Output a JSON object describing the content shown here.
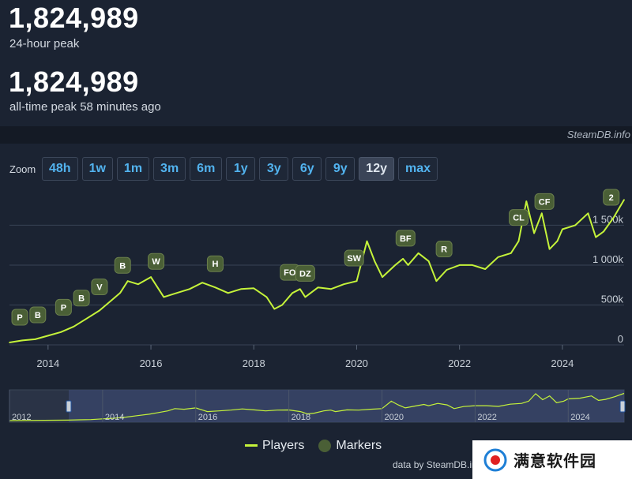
{
  "stats": {
    "peak_24h_value": "1,824,989",
    "peak_24h_label": "24-hour peak",
    "alltime_value": "1,824,989",
    "alltime_label": "all-time peak 58 minutes ago"
  },
  "watermark": "SteamDB.info",
  "zoom": {
    "label": "Zoom",
    "buttons": [
      {
        "label": "48h",
        "active": false
      },
      {
        "label": "1w",
        "active": false
      },
      {
        "label": "1m",
        "active": false
      },
      {
        "label": "3m",
        "active": false
      },
      {
        "label": "6m",
        "active": false
      },
      {
        "label": "1y",
        "active": false
      },
      {
        "label": "3y",
        "active": false
      },
      {
        "label": "6y",
        "active": false
      },
      {
        "label": "9y",
        "active": false
      },
      {
        "label": "12y",
        "active": true
      },
      {
        "label": "max",
        "active": false
      }
    ]
  },
  "colors": {
    "players_line": "#c5f33a",
    "marker_fill": "#4a5f36",
    "background": "#1b2332"
  },
  "legend": {
    "players": "Players",
    "markers": "Markers"
  },
  "credit": "data by SteamDB.info",
  "logo_text": "满意软件园",
  "chart_data": {
    "type": "line",
    "ylim": [
      0,
      1900000
    ],
    "y_ticks": [
      0,
      500000,
      1000000,
      1500000
    ],
    "y_tick_labels": [
      "0",
      "500k",
      "1 000k",
      "1 500k"
    ],
    "x_ticks": [
      2014,
      2016,
      2018,
      2020,
      2022,
      2024
    ],
    "xlim": [
      2013.25,
      2025.2
    ],
    "grid": true,
    "series": [
      {
        "name": "Players",
        "x": [
          2013.25,
          2013.5,
          2013.75,
          2014.0,
          2014.25,
          2014.5,
          2014.75,
          2015.0,
          2015.2,
          2015.4,
          2015.55,
          2015.75,
          2016.0,
          2016.25,
          2016.5,
          2016.75,
          2017.0,
          2017.25,
          2017.5,
          2017.75,
          2018.0,
          2018.25,
          2018.4,
          2018.55,
          2018.75,
          2018.9,
          2019.0,
          2019.25,
          2019.5,
          2019.75,
          2020.0,
          2020.2,
          2020.35,
          2020.5,
          2020.75,
          2020.9,
          2021.0,
          2021.2,
          2021.4,
          2021.55,
          2021.75,
          2022.0,
          2022.25,
          2022.5,
          2022.75,
          2023.0,
          2023.15,
          2023.3,
          2023.45,
          2023.6,
          2023.75,
          2023.9,
          2024.0,
          2024.25,
          2024.5,
          2024.65,
          2024.8,
          2025.0,
          2025.2
        ],
        "values": [
          30000,
          55000,
          70000,
          115000,
          160000,
          230000,
          330000,
          430000,
          540000,
          650000,
          800000,
          760000,
          850000,
          600000,
          650000,
          700000,
          780000,
          720000,
          650000,
          700000,
          710000,
          600000,
          450000,
          500000,
          650000,
          700000,
          600000,
          720000,
          700000,
          760000,
          800000,
          1300000,
          1050000,
          850000,
          1000000,
          1080000,
          1000000,
          1150000,
          1050000,
          800000,
          940000,
          1000000,
          1000000,
          950000,
          1100000,
          1150000,
          1300000,
          1800000,
          1400000,
          1650000,
          1200000,
          1300000,
          1450000,
          1500000,
          1650000,
          1350000,
          1420000,
          1600000,
          1820000
        ]
      }
    ],
    "markers": [
      {
        "label": "P",
        "x": 2013.45
      },
      {
        "label": "B",
        "x": 2013.8
      },
      {
        "label": "P",
        "x": 2014.3
      },
      {
        "label": "B",
        "x": 2014.65
      },
      {
        "label": "V",
        "x": 2015.0
      },
      {
        "label": "B",
        "x": 2015.45
      },
      {
        "label": "W",
        "x": 2016.1
      },
      {
        "label": "H",
        "x": 2017.25
      },
      {
        "label": "FO",
        "x": 2018.7
      },
      {
        "label": "DZ",
        "x": 2019.0
      },
      {
        "label": "SW",
        "x": 2019.95
      },
      {
        "label": "BF",
        "x": 2020.95
      },
      {
        "label": "R",
        "x": 2021.7
      },
      {
        "label": "CL",
        "x": 2023.15
      },
      {
        "label": "CF",
        "x": 2023.65
      },
      {
        "label": "2",
        "x": 2024.95
      }
    ],
    "navigator_labels": [
      "2012",
      "2014",
      "2016",
      "2018",
      "2020",
      "2022",
      "2024"
    ]
  }
}
